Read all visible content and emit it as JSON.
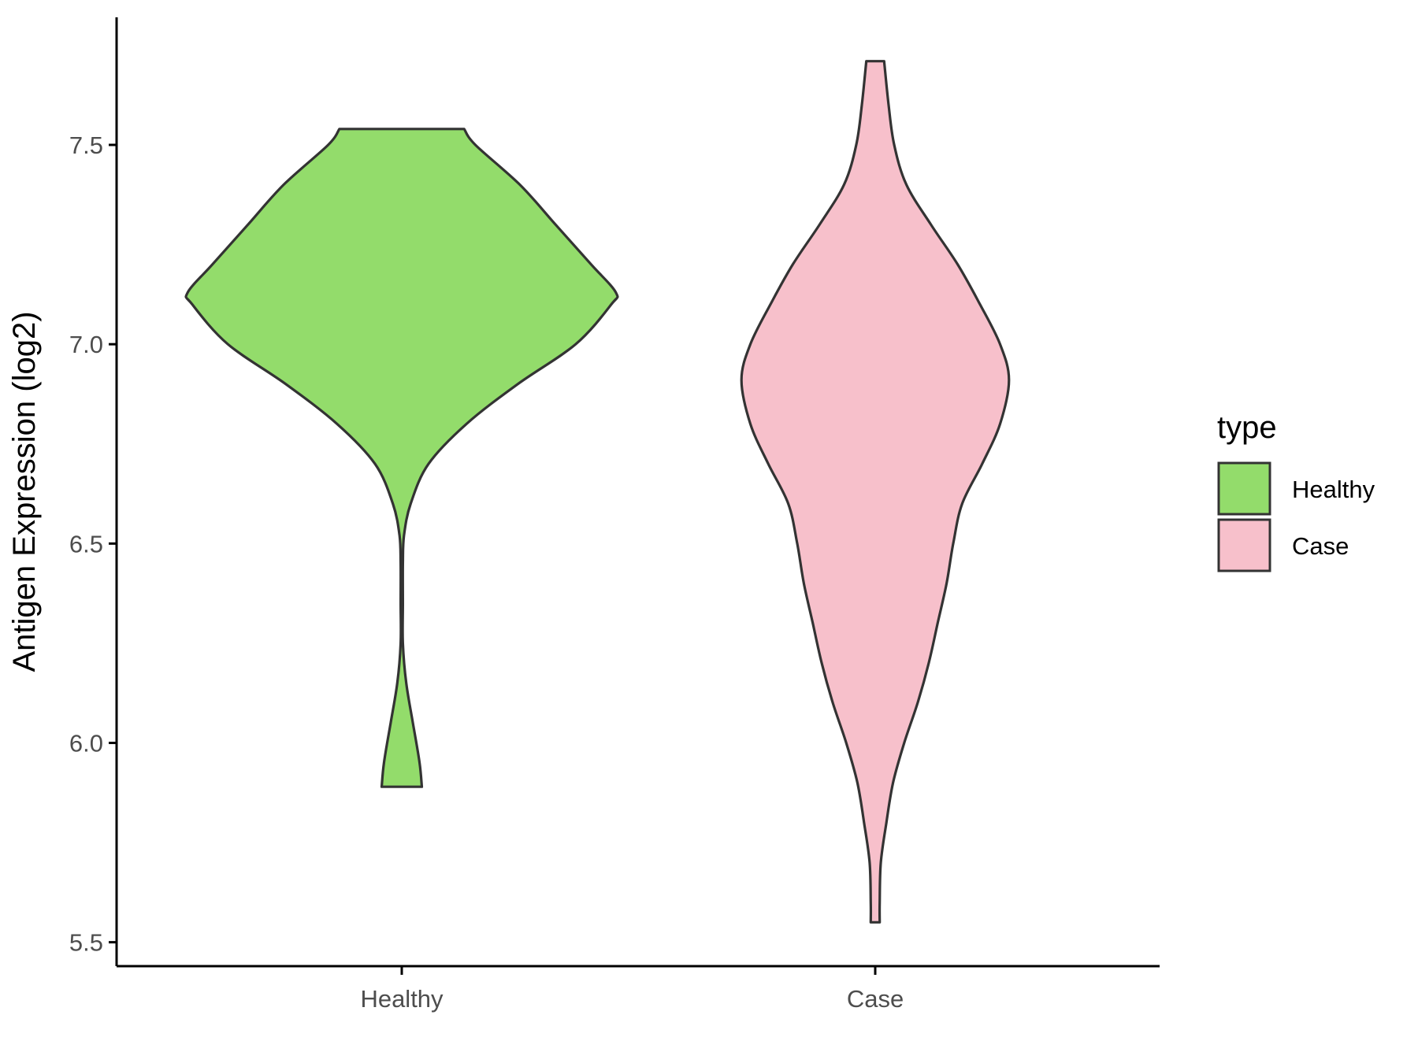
{
  "chart_data": {
    "type": "violin",
    "ylabel": "Antigen Expression (log2)",
    "xlabel": "",
    "categories": [
      "Healthy",
      "Case"
    ],
    "ylim": [
      5.44,
      7.82
    ],
    "yticks": [
      5.5,
      6.0,
      6.5,
      7.0,
      7.5
    ],
    "ytick_labels": [
      "5.5",
      "6.0",
      "6.5",
      "7.0",
      "7.5"
    ],
    "grid": false,
    "legend": {
      "title": "type",
      "position": "right",
      "entries": [
        "Healthy",
        "Case"
      ]
    },
    "series": [
      {
        "category": "Healthy",
        "color": "#93dc6b",
        "min": 5.89,
        "max": 7.54,
        "density_profile": [
          [
            5.89,
            0.09
          ],
          [
            5.95,
            0.08
          ],
          [
            6.05,
            0.05
          ],
          [
            6.15,
            0.02
          ],
          [
            6.25,
            0.005
          ],
          [
            6.35,
            0.005
          ],
          [
            6.45,
            0.005
          ],
          [
            6.52,
            0.01
          ],
          [
            6.6,
            0.04
          ],
          [
            6.7,
            0.12
          ],
          [
            6.8,
            0.29
          ],
          [
            6.9,
            0.52
          ],
          [
            7.0,
            0.78
          ],
          [
            7.1,
            0.94
          ],
          [
            7.13,
            0.96
          ],
          [
            7.2,
            0.85
          ],
          [
            7.3,
            0.69
          ],
          [
            7.4,
            0.53
          ],
          [
            7.5,
            0.33
          ],
          [
            7.54,
            0.28
          ]
        ]
      },
      {
        "category": "Case",
        "color": "#f7c0cb",
        "min": 5.55,
        "max": 7.71,
        "density_profile": [
          [
            5.55,
            0.02
          ],
          [
            5.6,
            0.02
          ],
          [
            5.7,
            0.025
          ],
          [
            5.8,
            0.05
          ],
          [
            5.9,
            0.08
          ],
          [
            6.0,
            0.13
          ],
          [
            6.1,
            0.19
          ],
          [
            6.2,
            0.24
          ],
          [
            6.3,
            0.28
          ],
          [
            6.4,
            0.32
          ],
          [
            6.5,
            0.35
          ],
          [
            6.6,
            0.39
          ],
          [
            6.7,
            0.48
          ],
          [
            6.8,
            0.56
          ],
          [
            6.91,
            0.6
          ],
          [
            7.0,
            0.56
          ],
          [
            7.1,
            0.47
          ],
          [
            7.2,
            0.37
          ],
          [
            7.3,
            0.25
          ],
          [
            7.4,
            0.14
          ],
          [
            7.5,
            0.085
          ],
          [
            7.6,
            0.06
          ],
          [
            7.71,
            0.04
          ]
        ]
      }
    ]
  }
}
